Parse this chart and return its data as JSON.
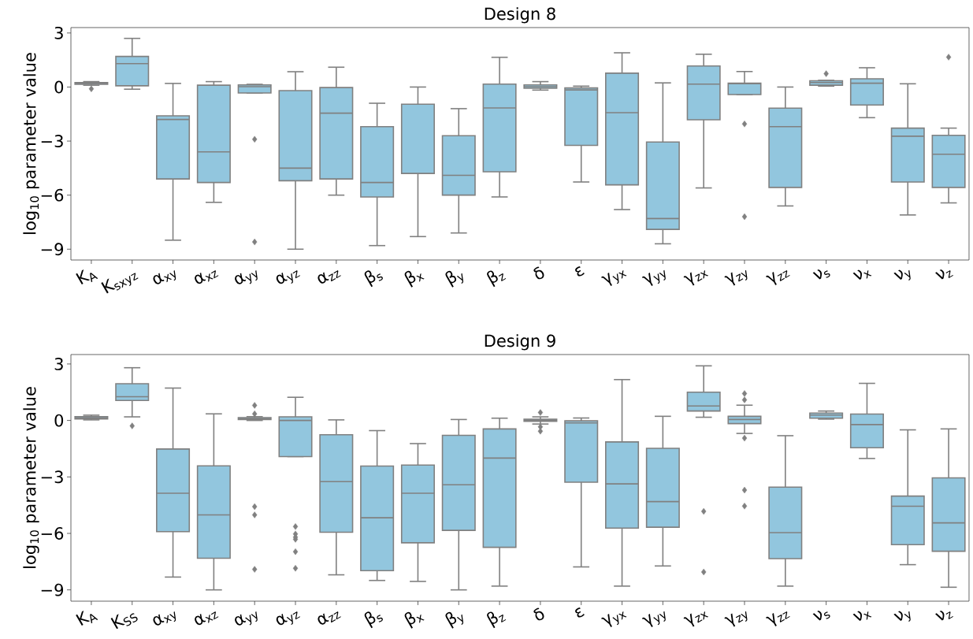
{
  "chart_data": [
    {
      "type": "box",
      "title": "Design 8",
      "ylabel": "log$_{10}$ parameter value",
      "color": "#92c6de",
      "categories": [
        "K$_{A}$",
        "K$_{sxyz}$",
        "α$_{xy}$",
        "α$_{xz}$",
        "α$_{yy}$",
        "α$_{yz}$",
        "α$_{zz}$",
        "β$_{s}$",
        "β$_{x}$",
        "β$_{y}$",
        "β$_{z}$",
        "δ",
        "ε",
        "γ$_{yx}$",
        "γ$_{yy}$",
        "γ$_{zx}$",
        "γ$_{zy}$",
        "γ$_{zz}$",
        "ν$_{s}$",
        "ν$_{x}$",
        "ν$_{y}$",
        "ν$_{z}$"
      ],
      "boxes": [
        {
          "low": 0.1,
          "q1": 0.15,
          "median": 0.2,
          "q3": 0.25,
          "high": 0.3,
          "outliers": [
            -0.1
          ]
        },
        {
          "low": -0.12,
          "q1": 0.07,
          "median": 1.3,
          "q3": 1.7,
          "high": 2.7
        },
        {
          "low": -8.5,
          "q1": -5.1,
          "median": -1.8,
          "q3": -1.6,
          "high": 0.2
        },
        {
          "low": -6.4,
          "q1": -5.3,
          "median": -3.6,
          "q3": 0.1,
          "high": 0.3
        },
        {
          "low": -0.33,
          "q1": -0.33,
          "median": 0.02,
          "q3": 0.12,
          "high": 0.15,
          "outliers": [
            -2.9,
            -8.6
          ]
        },
        {
          "low": -9.0,
          "q1": -5.2,
          "median": -4.5,
          "q3": -0.2,
          "high": 0.85
        },
        {
          "low": -6.0,
          "q1": -5.1,
          "median": -1.45,
          "q3": -0.03,
          "high": 1.1
        },
        {
          "low": -8.8,
          "q1": -6.1,
          "median": -5.3,
          "q3": -2.2,
          "high": -0.9
        },
        {
          "low": -8.3,
          "q1": -4.8,
          "median": -4.8,
          "q3": -0.95,
          "high": 0.0
        },
        {
          "low": -8.1,
          "q1": -6.0,
          "median": -4.9,
          "q3": -2.7,
          "high": -1.2
        },
        {
          "low": -6.1,
          "q1": -4.7,
          "median": -1.16,
          "q3": 0.16,
          "high": 1.65
        },
        {
          "low": -0.17,
          "q1": -0.07,
          "median": 0.02,
          "q3": 0.12,
          "high": 0.3
        },
        {
          "low": -5.27,
          "q1": -3.24,
          "median": -0.16,
          "q3": -0.05,
          "high": 0.05
        },
        {
          "low": -6.8,
          "q1": -5.43,
          "median": -1.42,
          "q3": 0.77,
          "high": 1.9
        },
        {
          "low": -8.7,
          "q1": -7.9,
          "median": -7.3,
          "q3": -3.05,
          "high": 0.23
        },
        {
          "low": -5.6,
          "q1": -1.82,
          "median": 0.16,
          "q3": 1.17,
          "high": 1.82
        },
        {
          "low": -0.42,
          "q1": -0.42,
          "median": 0.19,
          "q3": 0.21,
          "high": 0.86,
          "outliers": [
            -2.05,
            -7.2
          ]
        },
        {
          "low": -6.6,
          "q1": -5.57,
          "median": -2.2,
          "q3": -1.17,
          "high": 0.0
        },
        {
          "low": 0.05,
          "q1": 0.1,
          "median": 0.25,
          "q3": 0.35,
          "high": 0.37,
          "outliers": [
            0.74
          ]
        },
        {
          "low": -1.7,
          "q1": -1.0,
          "median": 0.21,
          "q3": 0.46,
          "high": 1.07
        },
        {
          "low": -7.1,
          "q1": -5.27,
          "median": -2.73,
          "q3": -2.28,
          "high": 0.18
        },
        {
          "low": -6.43,
          "q1": -5.57,
          "median": -3.73,
          "q3": -2.68,
          "high": -2.28,
          "outliers": [
            1.66
          ]
        }
      ],
      "ylim": [
        -9.6,
        3.3
      ],
      "yticks": [
        {
          "value": -9,
          "label": "−9"
        },
        {
          "value": -6,
          "label": "−6"
        },
        {
          "value": -3,
          "label": "−3"
        },
        0,
        3
      ]
    },
    {
      "type": "box",
      "title": "Design 9",
      "ylabel": "log$_{10}$ parameter value",
      "color": "#92c6de",
      "categories": [
        "K$_{A}$",
        "K$_{SS}$",
        "α$_{xy}$",
        "α$_{xz}$",
        "α$_{yy}$",
        "α$_{yz}$",
        "α$_{zz}$",
        "β$_{s}$",
        "β$_{x}$",
        "β$_{y}$",
        "β$_{z}$",
        "δ",
        "ε",
        "γ$_{yx}$",
        "γ$_{yy}$",
        "γ$_{zx}$",
        "γ$_{zy}$",
        "γ$_{zz}$",
        "ν$_{s}$",
        "ν$_{x}$",
        "ν$_{y}$",
        "ν$_{z}$"
      ],
      "boxes": [
        {
          "low": 0.03,
          "q1": 0.08,
          "median": 0.13,
          "q3": 0.2,
          "high": 0.28
        },
        {
          "low": 0.19,
          "q1": 1.06,
          "median": 1.26,
          "q3": 1.95,
          "high": 2.8,
          "outliers": [
            -0.29
          ]
        },
        {
          "low": -8.32,
          "q1": -5.91,
          "median": -3.87,
          "q3": -1.52,
          "high": 1.72
        },
        {
          "low": -9.0,
          "q1": -7.32,
          "median": -5.02,
          "q3": -2.41,
          "high": 0.35
        },
        {
          "low": 0.0,
          "q1": 0.05,
          "median": 0.1,
          "q3": 0.15,
          "high": 0.2,
          "outliers": [
            0.8,
            0.35,
            -4.58,
            -5.02,
            -7.91
          ]
        },
        {
          "low": -1.92,
          "q1": -1.92,
          "median": 0.0,
          "q3": 0.19,
          "high": 1.23,
          "outliers": [
            -5.64,
            -6.03,
            -6.2,
            -6.31,
            -6.97,
            -7.85
          ]
        },
        {
          "low": -8.2,
          "q1": -5.94,
          "median": -3.25,
          "q3": -0.76,
          "high": 0.03
        },
        {
          "low": -8.5,
          "q1": -7.98,
          "median": -5.17,
          "q3": -2.42,
          "high": -0.54
        },
        {
          "low": -8.55,
          "q1": -6.5,
          "median": -3.87,
          "q3": -2.37,
          "high": -1.23
        },
        {
          "low": -9.0,
          "q1": -5.84,
          "median": -3.42,
          "q3": -0.79,
          "high": 0.05
        },
        {
          "low": -8.8,
          "q1": -6.74,
          "median": -2.0,
          "q3": -0.45,
          "high": 0.12
        },
        {
          "low": -0.19,
          "q1": -0.05,
          "median": 0.02,
          "q3": 0.07,
          "high": 0.19,
          "outliers": [
            0.42,
            -0.34,
            -0.57
          ]
        },
        {
          "low": -7.78,
          "q1": -3.28,
          "median": -0.13,
          "q3": -0.02,
          "high": 0.13
        },
        {
          "low": -8.8,
          "q1": -5.72,
          "median": -3.37,
          "q3": -1.14,
          "high": 2.17
        },
        {
          "low": -7.73,
          "q1": -5.67,
          "median": -4.31,
          "q3": -1.48,
          "high": 0.22
        },
        {
          "low": 0.17,
          "q1": 0.5,
          "median": 0.77,
          "q3": 1.5,
          "high": 2.9,
          "outliers": [
            -4.83,
            -8.05
          ]
        },
        {
          "low": -0.69,
          "q1": -0.17,
          "median": 0.05,
          "q3": 0.22,
          "high": 0.81,
          "outliers": [
            1.43,
            1.09,
            -0.94,
            -3.7,
            -4.55
          ]
        },
        {
          "low": -8.8,
          "q1": -7.34,
          "median": -5.96,
          "q3": -3.54,
          "high": -0.81
        },
        {
          "low": 0.07,
          "q1": 0.12,
          "median": 0.29,
          "q3": 0.39,
          "high": 0.5
        },
        {
          "low": -2.02,
          "q1": -1.45,
          "median": -0.22,
          "q3": 0.34,
          "high": 1.97
        },
        {
          "low": -7.66,
          "q1": -6.6,
          "median": -4.56,
          "q3": -4.02,
          "high": -0.5
        },
        {
          "low": -8.86,
          "q1": -6.95,
          "median": -5.44,
          "q3": -3.05,
          "high": -0.45
        }
      ],
      "ylim": [
        -9.6,
        3.5
      ],
      "yticks": [
        {
          "value": -9,
          "label": "−9"
        },
        {
          "value": -6,
          "label": "−6"
        },
        {
          "value": -3,
          "label": "−3"
        },
        0,
        3
      ]
    }
  ]
}
